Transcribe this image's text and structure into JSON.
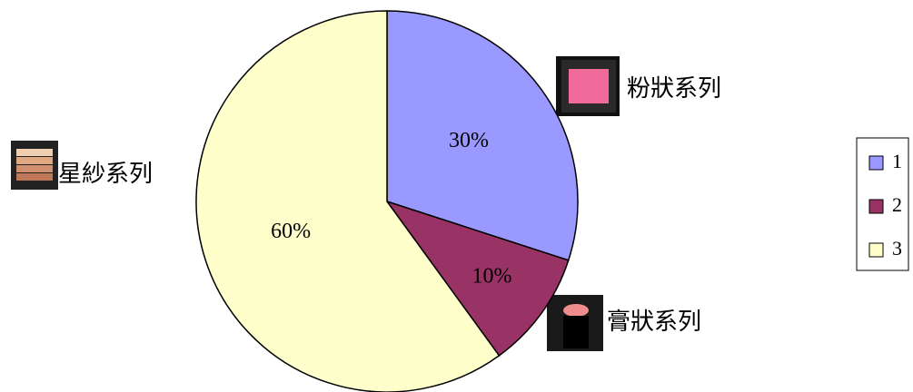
{
  "chart_data": {
    "type": "pie",
    "categories": [
      "1",
      "2",
      "3"
    ],
    "values": [
      30,
      10,
      60
    ],
    "value_labels": [
      "30%",
      "10%",
      "60%"
    ],
    "colors": [
      "#9999ff",
      "#993366",
      "#ffffcc"
    ],
    "annotations": [
      "粉狀系列",
      "膏狀系列",
      "星紗系列"
    ],
    "legend": "right"
  }
}
